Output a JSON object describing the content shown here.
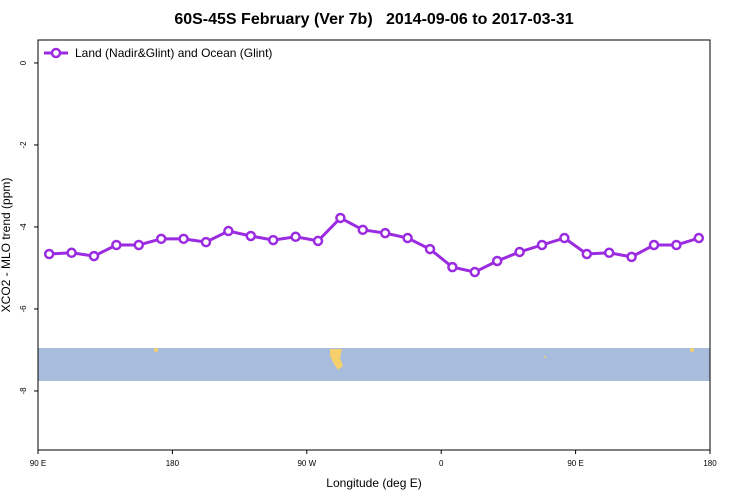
{
  "chart_data": {
    "type": "line",
    "title": "60S-45S February (Ver 7b)   2014-09-06 to 2017-03-31",
    "x_label": "Longitude (deg E)",
    "y_label": "XCO2 - MLO trend (ppm)",
    "x": [
      97.5,
      112.5,
      127.5,
      142.5,
      157.5,
      172.5,
      187.5,
      202.5,
      217.5,
      232.5,
      247.5,
      262.5,
      277.5,
      292.5,
      307.5,
      322.5,
      337.5,
      352.5,
      367.5,
      382.5,
      397.5,
      412.5,
      427.5,
      442.5,
      457.5,
      472.5,
      487.5,
      502.5,
      517.5,
      532.5
    ],
    "series": [
      {
        "name": "Land (Nadir&Glint) and Ocean (Glint)",
        "color": "#9b2be0",
        "values": [
          -4.66,
          -4.63,
          -4.71,
          -4.44,
          -4.44,
          -4.29,
          -4.29,
          -4.37,
          -4.1,
          -4.22,
          -4.32,
          -4.24,
          -4.34,
          -3.78,
          -4.07,
          -4.15,
          -4.27,
          -4.54,
          -4.98,
          -5.1,
          -4.83,
          -4.61,
          -4.44,
          -4.27,
          -4.66,
          -4.63,
          -4.73,
          -4.44,
          -4.44,
          -4.27
        ]
      }
    ],
    "xlim": [
      90,
      540
    ],
    "xticks": [
      {
        "value": 90,
        "label": "90 E"
      },
      {
        "value": 180,
        "label": "180"
      },
      {
        "value": 270,
        "label": "90 W"
      },
      {
        "value": 360,
        "label": "0"
      },
      {
        "value": 450,
        "label": "90 E"
      },
      {
        "value": 540,
        "label": "180"
      }
    ],
    "ylim": [
      -9.44,
      0.56
    ],
    "yticks": [
      0,
      -2,
      -4,
      -6,
      -8
    ],
    "legend": "top-left"
  }
}
